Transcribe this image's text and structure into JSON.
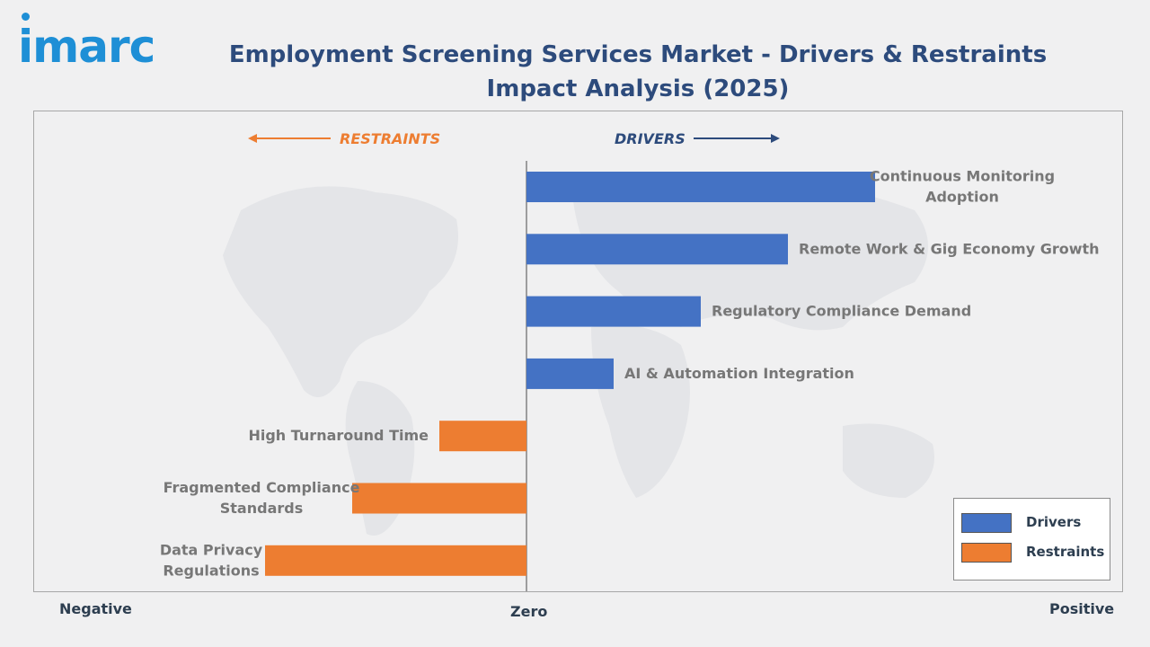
{
  "brand": {
    "name": "imarc"
  },
  "colors": {
    "drivers": "#4472c4",
    "restraints": "#ed7d31",
    "title": "#2d4b7c",
    "brand": "#1e8fd6"
  },
  "chart_data": {
    "type": "bar",
    "orientation": "horizontal",
    "title": "Employment Screening Services Market - Drivers & Restraints Impact Analysis (2025)",
    "title_lines": [
      "Employment Screening Services Market - Drivers & Restraints",
      "Impact Analysis (2025)"
    ],
    "direction_labels": {
      "restraints": "RESTRAINTS",
      "drivers": "DRIVERS"
    },
    "axis_labels": {
      "negative": "Negative",
      "zero": "Zero",
      "positive": "Positive"
    },
    "xlim": [
      -3,
      4
    ],
    "grid": false,
    "legend_position": "bottom-right",
    "series": [
      {
        "name": "Drivers",
        "categories": [
          {
            "label": "Continuous Monitoring Adoption",
            "label_lines": [
              "Continuous Monitoring",
              "Adoption"
            ],
            "value": 4.0
          },
          {
            "label": "Remote Work & Gig Economy Growth",
            "label_lines": [
              "Remote Work & Gig Economy Growth"
            ],
            "value": 3.0
          },
          {
            "label": "Regulatory Compliance Demand",
            "label_lines": [
              "Regulatory Compliance Demand"
            ],
            "value": 2.0
          },
          {
            "label": "AI & Automation Integration",
            "label_lines": [
              "AI & Automation Integration"
            ],
            "value": 1.0
          }
        ]
      },
      {
        "name": "Restraints",
        "categories": [
          {
            "label": "High Turnaround Time",
            "label_lines": [
              "High Turnaround Time"
            ],
            "value": -1.0
          },
          {
            "label": "Fragmented Compliance Standards",
            "label_lines": [
              "Fragmented Compliance",
              "Standards"
            ],
            "value": -2.0
          },
          {
            "label": "Data Privacy Regulations",
            "label_lines": [
              "Data Privacy",
              "Regulations"
            ],
            "value": -3.0
          }
        ]
      }
    ]
  }
}
